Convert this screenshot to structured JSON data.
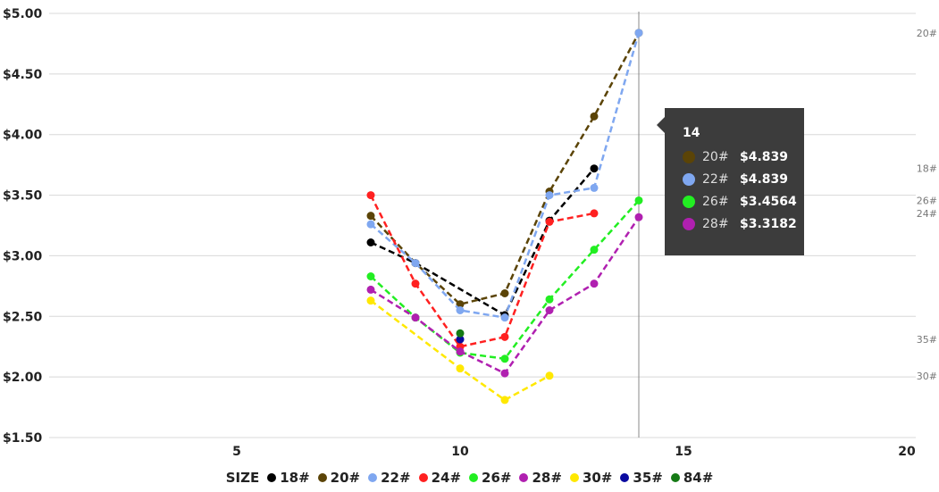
{
  "chart_data": {
    "type": "line",
    "xlim": [
      0,
      20
    ],
    "ylim": [
      1.5,
      5.0
    ],
    "x_ticks": [
      5,
      10,
      15,
      20
    ],
    "y_ticks": [
      "$1.50",
      "$2.00",
      "$2.50",
      "$3.00",
      "$3.50",
      "$4.00",
      "$4.50",
      "$5.00"
    ],
    "y_tick_values": [
      1.5,
      2.0,
      2.5,
      3.0,
      3.5,
      4.0,
      4.5,
      5.0
    ],
    "grid": true,
    "line_style": "dashed",
    "legend_title": "SIZE",
    "legend_position": "bottom",
    "series": [
      {
        "name": "18#",
        "color": "#000000",
        "end_label": true,
        "x": [
          8,
          9,
          11,
          12,
          13
        ],
        "y": [
          3.11,
          2.94,
          2.51,
          3.29,
          3.72
        ]
      },
      {
        "name": "20#",
        "color": "#5b4407",
        "end_label": true,
        "x": [
          8,
          9,
          10,
          11,
          12,
          13,
          14
        ],
        "y": [
          3.33,
          2.94,
          2.6,
          2.69,
          3.53,
          4.15,
          4.839
        ]
      },
      {
        "name": "22#",
        "color": "#7fa7f0",
        "end_label": false,
        "x": [
          8,
          9,
          10,
          11,
          12,
          13,
          14
        ],
        "y": [
          3.26,
          2.94,
          2.55,
          2.49,
          3.5,
          3.56,
          4.839
        ]
      },
      {
        "name": "24#",
        "color": "#ff2020",
        "end_label": true,
        "x": [
          8,
          9,
          10,
          11,
          12,
          13
        ],
        "y": [
          3.5,
          2.77,
          2.25,
          2.33,
          3.28,
          3.35
        ]
      },
      {
        "name": "26#",
        "color": "#22ee22",
        "end_label": true,
        "x": [
          8,
          9,
          10,
          11,
          12,
          13,
          14
        ],
        "y": [
          2.83,
          2.49,
          2.2,
          2.15,
          2.64,
          3.05,
          3.4564
        ]
      },
      {
        "name": "28#",
        "color": "#b020b0",
        "end_label": false,
        "x": [
          8,
          9,
          10,
          11,
          12,
          13,
          14
        ],
        "y": [
          2.72,
          2.49,
          2.21,
          2.03,
          2.55,
          2.77,
          3.3182
        ]
      },
      {
        "name": "30#",
        "color": "#ffe800",
        "end_label": true,
        "x": [
          8,
          10,
          11,
          12
        ],
        "y": [
          2.63,
          2.07,
          1.81,
          2.01
        ]
      },
      {
        "name": "35#",
        "color": "#0a0aa0",
        "end_label": true,
        "x": [
          10
        ],
        "y": [
          2.31
        ]
      },
      {
        "name": "84#",
        "color": "#157a15",
        "end_label": false,
        "x": [
          10
        ],
        "y": [
          2.36
        ]
      }
    ],
    "hover_x": 14,
    "tooltip": {
      "title": "14",
      "rows": [
        {
          "name": "20#",
          "value": "$4.839",
          "color": "#5b4407"
        },
        {
          "name": "22#",
          "value": "$4.839",
          "color": "#7fa7f0"
        },
        {
          "name": "26#",
          "value": "$3.4564",
          "color": "#22ee22"
        },
        {
          "name": "28#",
          "value": "$3.3182",
          "color": "#b020b0"
        }
      ]
    }
  }
}
